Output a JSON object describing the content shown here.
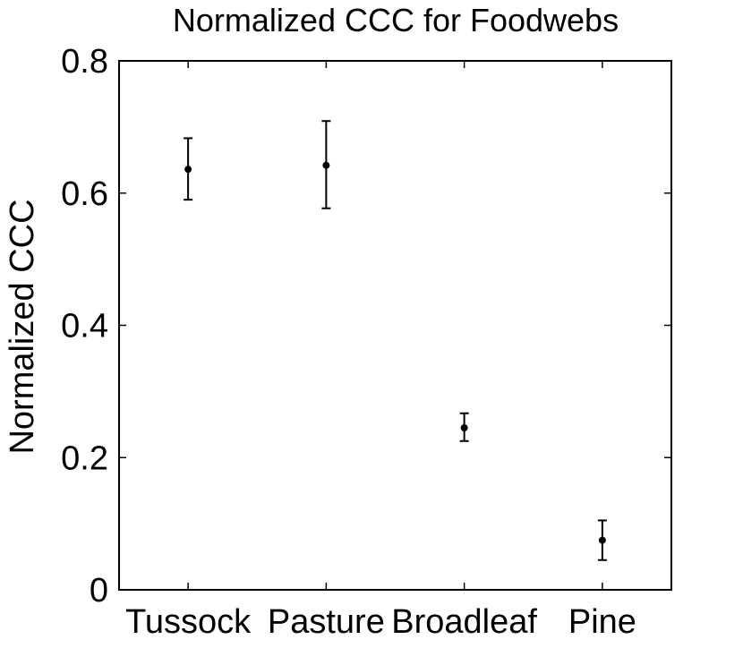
{
  "chart_data": {
    "type": "scatter",
    "title": "Normalized CCC for Foodwebs",
    "xlabel": "",
    "ylabel": "Normalized CCC",
    "categories": [
      "Tussock",
      "Pasture",
      "Broadleaf",
      "Pine"
    ],
    "ylim": [
      0,
      0.8
    ],
    "yticks": [
      "0",
      "0.2",
      "0.4",
      "0.6",
      "0.8"
    ],
    "series": [
      {
        "values": [
          0.636,
          0.642,
          0.245,
          0.075
        ],
        "err_low": [
          0.59,
          0.577,
          0.225,
          0.045
        ],
        "err_high": [
          0.683,
          0.709,
          0.267,
          0.105
        ]
      }
    ],
    "grid": false,
    "legend": "none",
    "colors": {
      "marker": "#000000",
      "axis": "#000000",
      "background": "#ffffff"
    }
  }
}
